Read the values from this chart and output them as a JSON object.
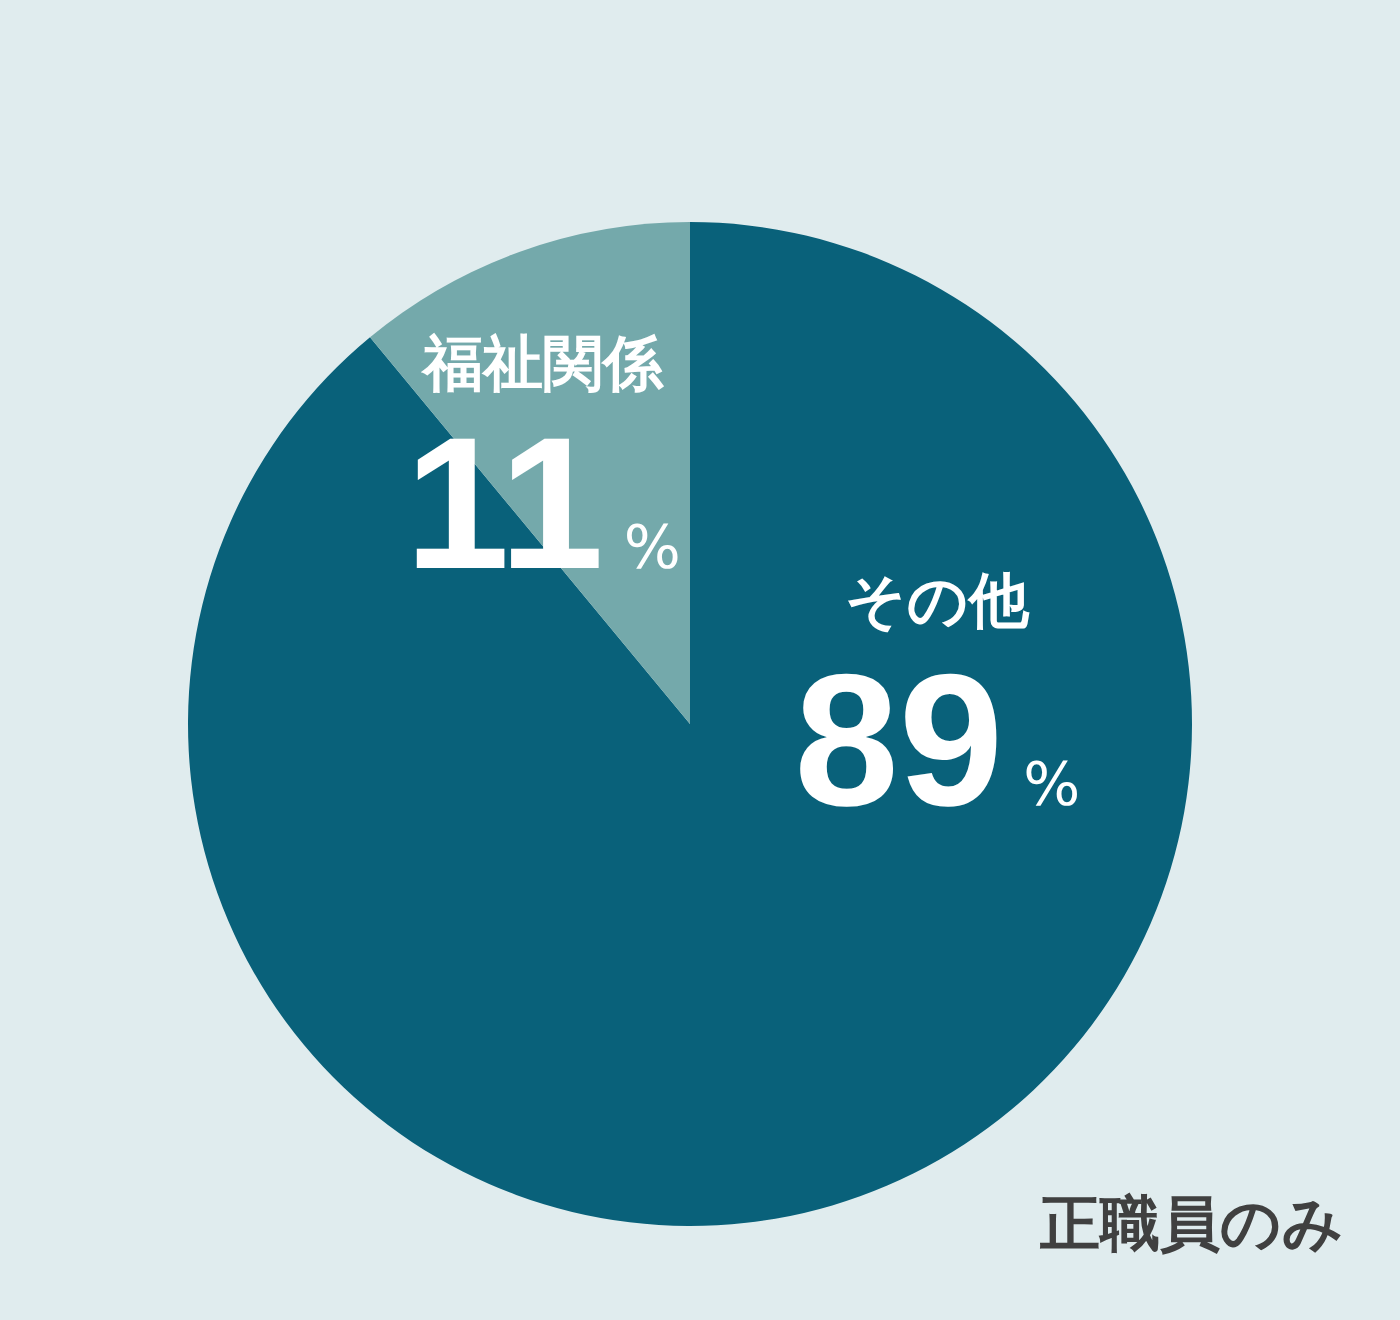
{
  "chart_data": {
    "type": "pie",
    "categories": [
      "その他",
      "福祉関係"
    ],
    "values": [
      89,
      11
    ],
    "colors": [
      "#09617a",
      "#74a9ab"
    ],
    "value_labels": [
      "89%",
      "11%"
    ],
    "annotations": [
      "正職員のみ"
    ]
  }
}
